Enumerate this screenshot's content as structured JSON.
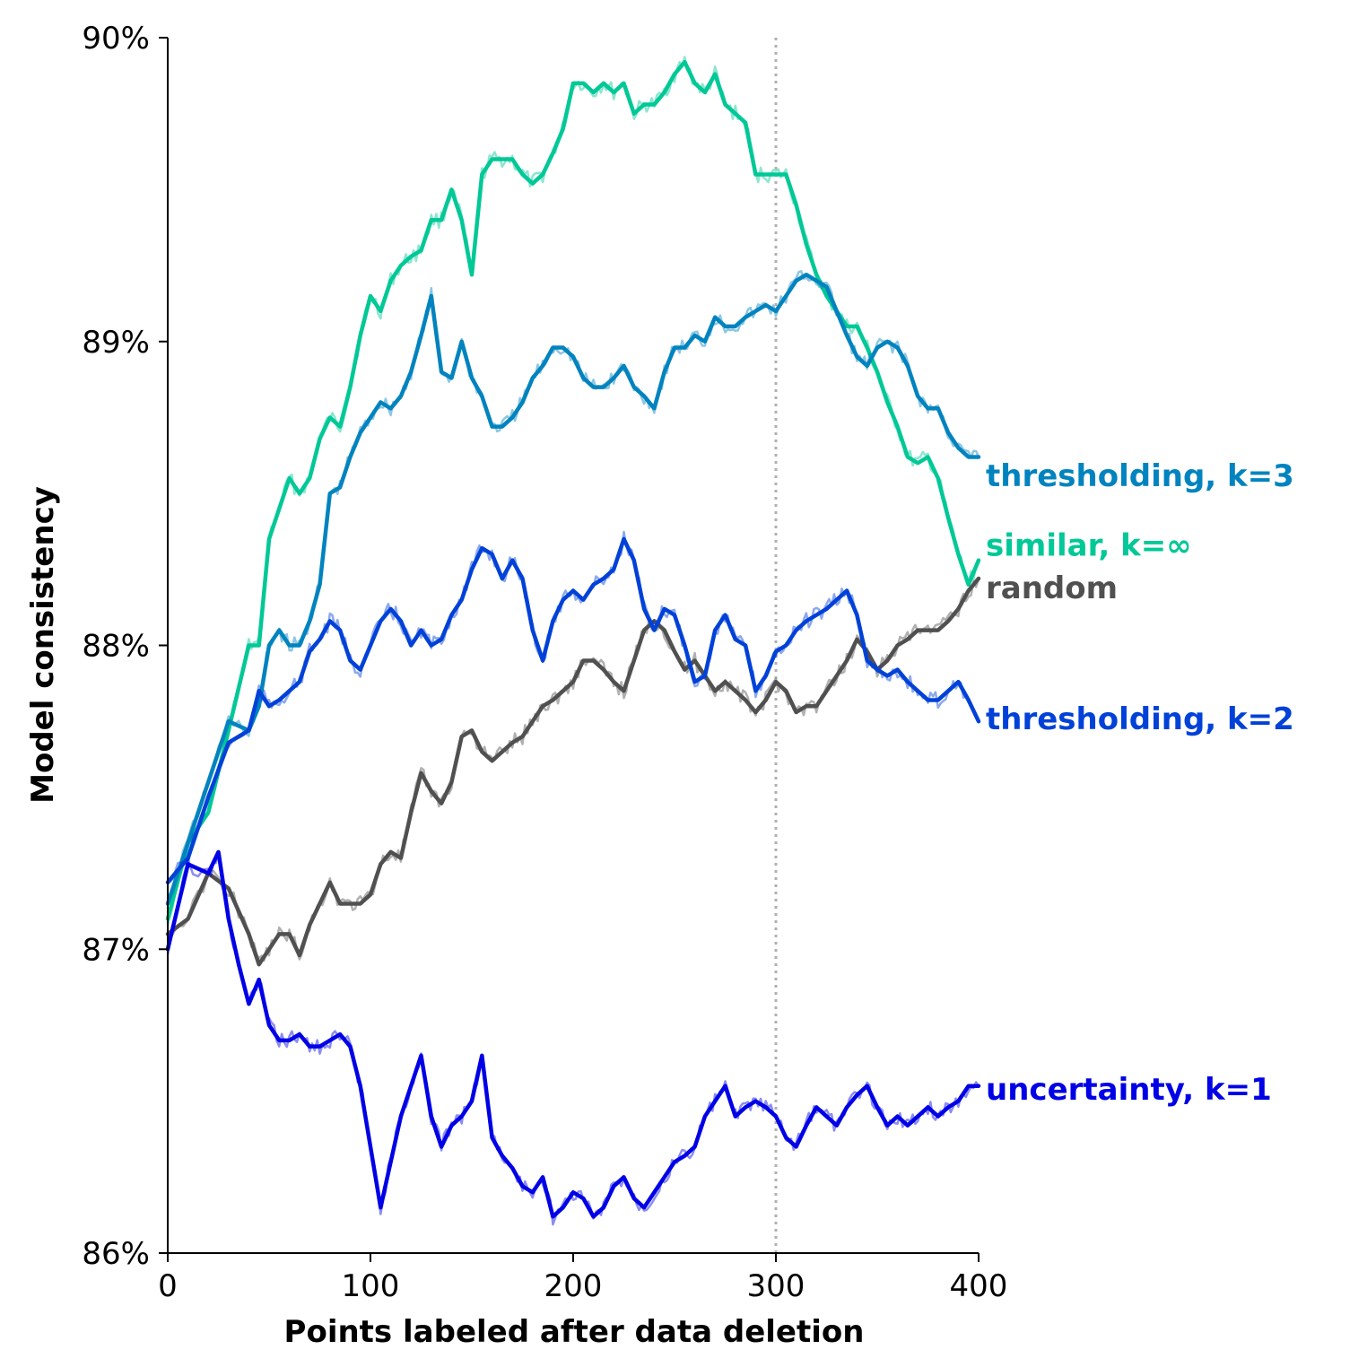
{
  "chart_data": {
    "type": "line",
    "xlabel": "Points labeled after data deletion",
    "ylabel": "Model consistency",
    "xlim": [
      0,
      400
    ],
    "ylim": [
      86,
      90
    ],
    "x_ticks": [
      0,
      100,
      200,
      300,
      400
    ],
    "y_ticks": [
      86,
      87,
      88,
      89,
      90
    ],
    "x_tick_labels": [
      "0",
      "100",
      "200",
      "300",
      "400"
    ],
    "y_tick_labels": [
      "86%",
      "87%",
      "88%",
      "89%",
      "90%"
    ],
    "reference_line": {
      "x": 300,
      "style": "dotted",
      "color": "#b0b0b0"
    },
    "grid": false,
    "series": [
      {
        "name": "similar, k=∞",
        "color": "#00c896",
        "x": [
          0,
          10,
          20,
          30,
          40,
          45,
          50,
          55,
          60,
          65,
          70,
          75,
          80,
          85,
          90,
          95,
          100,
          105,
          110,
          115,
          120,
          125,
          130,
          135,
          140,
          145,
          150,
          155,
          160,
          165,
          170,
          175,
          180,
          185,
          190,
          195,
          200,
          205,
          210,
          215,
          220,
          225,
          230,
          235,
          240,
          245,
          250,
          255,
          260,
          265,
          270,
          275,
          280,
          285,
          290,
          295,
          300,
          305,
          310,
          315,
          320,
          325,
          330,
          335,
          340,
          345,
          350,
          355,
          360,
          365,
          370,
          375,
          380,
          385,
          390,
          395,
          400
        ],
        "y": [
          87.1,
          87.35,
          87.45,
          87.72,
          88.0,
          88.0,
          88.35,
          88.45,
          88.55,
          88.5,
          88.55,
          88.68,
          88.75,
          88.72,
          88.85,
          89.02,
          89.15,
          89.1,
          89.2,
          89.25,
          89.28,
          89.3,
          89.4,
          89.4,
          89.5,
          89.4,
          89.22,
          89.55,
          89.6,
          89.6,
          89.6,
          89.55,
          89.52,
          89.55,
          89.62,
          89.7,
          89.85,
          89.85,
          89.82,
          89.85,
          89.82,
          89.85,
          89.75,
          89.78,
          89.78,
          89.82,
          89.88,
          89.92,
          89.85,
          89.82,
          89.88,
          89.78,
          89.75,
          89.72,
          89.55,
          89.55,
          89.55,
          89.55,
          89.45,
          89.32,
          89.22,
          89.15,
          89.1,
          89.05,
          89.05,
          88.98,
          88.9,
          88.8,
          88.72,
          88.62,
          88.6,
          88.62,
          88.55,
          88.42,
          88.3,
          88.2,
          88.28
        ]
      },
      {
        "name": "thresholding, k=3",
        "color": "#0083bf",
        "x": [
          0,
          10,
          20,
          30,
          40,
          45,
          50,
          55,
          60,
          65,
          70,
          75,
          80,
          85,
          90,
          95,
          100,
          105,
          110,
          115,
          120,
          125,
          130,
          135,
          140,
          145,
          150,
          155,
          160,
          165,
          170,
          175,
          180,
          185,
          190,
          195,
          200,
          205,
          210,
          215,
          220,
          225,
          230,
          235,
          240,
          245,
          250,
          255,
          260,
          265,
          270,
          275,
          280,
          285,
          290,
          295,
          300,
          305,
          310,
          315,
          320,
          325,
          330,
          335,
          340,
          345,
          350,
          355,
          360,
          365,
          370,
          375,
          380,
          385,
          390,
          395,
          400
        ],
        "y": [
          87.15,
          87.35,
          87.55,
          87.75,
          87.72,
          87.8,
          88.0,
          88.05,
          88.0,
          88.0,
          88.08,
          88.2,
          88.5,
          88.52,
          88.62,
          88.7,
          88.75,
          88.8,
          88.78,
          88.82,
          88.9,
          89.02,
          89.15,
          88.9,
          88.88,
          89.0,
          88.88,
          88.82,
          88.72,
          88.72,
          88.75,
          88.8,
          88.88,
          88.92,
          88.98,
          88.98,
          88.95,
          88.88,
          88.85,
          88.85,
          88.88,
          88.92,
          88.85,
          88.82,
          88.78,
          88.9,
          88.98,
          88.98,
          89.02,
          89.0,
          89.08,
          89.05,
          89.05,
          89.08,
          89.1,
          89.12,
          89.1,
          89.15,
          89.2,
          89.22,
          89.2,
          89.18,
          89.1,
          89.02,
          88.95,
          88.92,
          88.98,
          89.0,
          88.98,
          88.92,
          88.82,
          88.78,
          88.78,
          88.7,
          88.65,
          88.62,
          88.62
        ]
      },
      {
        "name": "random",
        "color": "#505050",
        "x": [
          0,
          10,
          20,
          30,
          40,
          45,
          50,
          55,
          60,
          65,
          70,
          75,
          80,
          85,
          90,
          95,
          100,
          105,
          110,
          115,
          120,
          125,
          130,
          135,
          140,
          145,
          150,
          155,
          160,
          165,
          170,
          175,
          180,
          185,
          190,
          195,
          200,
          205,
          210,
          215,
          220,
          225,
          230,
          235,
          240,
          245,
          250,
          255,
          260,
          265,
          270,
          275,
          280,
          285,
          290,
          295,
          300,
          305,
          310,
          315,
          320,
          325,
          330,
          335,
          340,
          345,
          350,
          355,
          360,
          365,
          370,
          375,
          380,
          385,
          390,
          395,
          400
        ],
        "y": [
          87.05,
          87.1,
          87.25,
          87.2,
          87.05,
          86.95,
          87.0,
          87.05,
          87.05,
          86.98,
          87.08,
          87.15,
          87.22,
          87.15,
          87.15,
          87.15,
          87.18,
          87.28,
          87.32,
          87.3,
          87.45,
          87.58,
          87.52,
          87.48,
          87.55,
          87.7,
          87.72,
          87.65,
          87.62,
          87.65,
          87.68,
          87.7,
          87.75,
          87.8,
          87.82,
          87.85,
          87.88,
          87.95,
          87.95,
          87.92,
          87.88,
          87.85,
          87.95,
          88.05,
          88.08,
          88.05,
          87.98,
          87.92,
          87.95,
          87.9,
          87.85,
          87.88,
          87.85,
          87.82,
          87.78,
          87.82,
          87.88,
          87.85,
          87.78,
          87.8,
          87.8,
          87.85,
          87.9,
          87.95,
          88.02,
          87.98,
          87.92,
          87.95,
          88.0,
          88.02,
          88.05,
          88.05,
          88.05,
          88.08,
          88.12,
          88.18,
          88.22
        ]
      },
      {
        "name": "thresholding, k=2",
        "color": "#0041d8",
        "x": [
          0,
          10,
          20,
          30,
          40,
          45,
          50,
          55,
          60,
          65,
          70,
          75,
          80,
          85,
          90,
          95,
          100,
          105,
          110,
          115,
          120,
          125,
          130,
          135,
          140,
          145,
          150,
          155,
          160,
          165,
          170,
          175,
          180,
          185,
          190,
          195,
          200,
          205,
          210,
          215,
          220,
          225,
          230,
          235,
          240,
          245,
          250,
          255,
          260,
          265,
          270,
          275,
          280,
          285,
          290,
          295,
          300,
          305,
          310,
          315,
          320,
          325,
          330,
          335,
          340,
          345,
          350,
          355,
          360,
          365,
          370,
          375,
          380,
          385,
          390,
          395,
          400
        ],
        "y": [
          87.22,
          87.3,
          87.5,
          87.68,
          87.72,
          87.85,
          87.8,
          87.82,
          87.85,
          87.88,
          87.98,
          88.02,
          88.08,
          88.05,
          87.95,
          87.92,
          88.0,
          88.08,
          88.12,
          88.08,
          88.0,
          88.05,
          88.0,
          88.02,
          88.1,
          88.15,
          88.25,
          88.32,
          88.3,
          88.22,
          88.28,
          88.22,
          88.05,
          87.95,
          88.08,
          88.15,
          88.18,
          88.15,
          88.2,
          88.22,
          88.25,
          88.35,
          88.28,
          88.12,
          88.05,
          88.12,
          88.1,
          88.0,
          87.88,
          87.9,
          88.05,
          88.1,
          88.02,
          88.0,
          87.85,
          87.9,
          87.98,
          88.0,
          88.05,
          88.08,
          88.1,
          88.12,
          88.15,
          88.18,
          88.1,
          87.95,
          87.92,
          87.9,
          87.92,
          87.88,
          87.85,
          87.82,
          87.82,
          87.85,
          87.88,
          87.82,
          87.75
        ]
      },
      {
        "name": "uncertainty, k=1",
        "color": "#0000e6",
        "x": [
          0,
          10,
          20,
          25,
          30,
          35,
          40,
          45,
          50,
          55,
          60,
          65,
          70,
          75,
          80,
          85,
          90,
          95,
          100,
          105,
          110,
          115,
          120,
          125,
          130,
          135,
          140,
          145,
          150,
          155,
          160,
          165,
          170,
          175,
          180,
          185,
          190,
          195,
          200,
          205,
          210,
          215,
          220,
          225,
          230,
          235,
          240,
          245,
          250,
          255,
          260,
          265,
          270,
          275,
          280,
          285,
          290,
          295,
          300,
          305,
          310,
          315,
          320,
          325,
          330,
          335,
          340,
          345,
          350,
          355,
          360,
          365,
          370,
          375,
          380,
          385,
          390,
          395,
          400
        ],
        "y": [
          87.0,
          87.28,
          87.25,
          87.32,
          87.1,
          86.95,
          86.82,
          86.9,
          86.75,
          86.7,
          86.7,
          86.72,
          86.68,
          86.68,
          86.7,
          86.72,
          86.68,
          86.55,
          86.35,
          86.15,
          86.3,
          86.45,
          86.55,
          86.65,
          86.45,
          86.35,
          86.42,
          86.45,
          86.5,
          86.65,
          86.38,
          86.32,
          86.28,
          86.22,
          86.2,
          86.25,
          86.12,
          86.15,
          86.2,
          86.18,
          86.12,
          86.15,
          86.22,
          86.25,
          86.18,
          86.15,
          86.2,
          86.25,
          86.3,
          86.32,
          86.35,
          86.45,
          86.5,
          86.55,
          86.45,
          86.48,
          86.5,
          86.48,
          86.45,
          86.38,
          86.35,
          86.42,
          86.48,
          86.45,
          86.42,
          86.48,
          86.52,
          86.55,
          86.48,
          86.42,
          86.45,
          86.42,
          86.45,
          86.48,
          86.45,
          86.48,
          86.5,
          86.55,
          86.55
        ]
      }
    ],
    "labels": [
      {
        "text": "thresholding, k=3",
        "value": 88.56,
        "color": "#0083bf"
      },
      {
        "text": "similar, k=∞",
        "value": 88.33,
        "color": "#00c896"
      },
      {
        "text": "random",
        "value": 88.19,
        "color": "#505050"
      },
      {
        "text": "thresholding, k=2",
        "value": 87.76,
        "color": "#0041d8"
      },
      {
        "text": "uncertainty, k=1",
        "value": 86.54,
        "color": "#0000e6"
      }
    ]
  }
}
